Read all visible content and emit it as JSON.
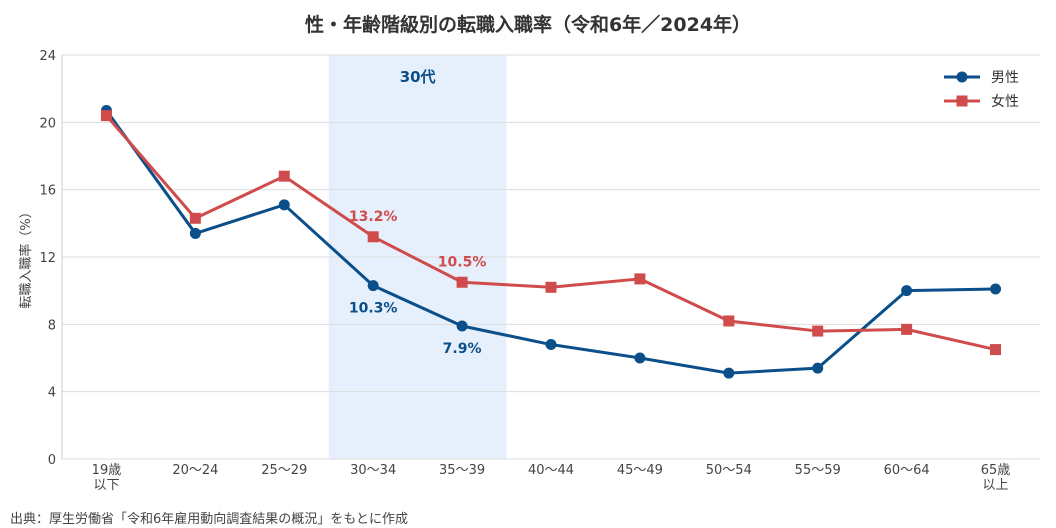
{
  "chart_data": {
    "type": "line",
    "title": "性・年齢階級別の転職入職率（令和6年／2024年）",
    "ylabel": "転職入職率（%）",
    "xlabel": "",
    "ylim": [
      0,
      24
    ],
    "yticks": [
      "0",
      "4",
      "8",
      "12",
      "16",
      "20",
      "24"
    ],
    "grid": true,
    "legend_position": "top-right",
    "categories": [
      [
        "19歳",
        "以下"
      ],
      [
        "20〜24"
      ],
      [
        "25〜29"
      ],
      [
        "30〜34"
      ],
      [
        "35〜39"
      ],
      [
        "40〜44"
      ],
      [
        "45〜49"
      ],
      [
        "50〜54"
      ],
      [
        "55〜59"
      ],
      [
        "60〜64"
      ],
      [
        "65歳",
        "以上"
      ]
    ],
    "series": [
      {
        "name": "男性",
        "color": "#0b4f8a",
        "marker": "circle",
        "values": [
          20.7,
          13.4,
          15.1,
          10.3,
          7.9,
          6.8,
          6.0,
          5.1,
          5.4,
          10.0,
          10.1
        ]
      },
      {
        "name": "女性",
        "color": "#d04b4b",
        "marker": "square",
        "values": [
          20.4,
          14.3,
          16.8,
          13.2,
          10.5,
          10.2,
          10.7,
          8.2,
          7.6,
          7.7,
          6.5
        ]
      }
    ],
    "highlight": {
      "label": "30代",
      "from_index": 3,
      "to_index": 4,
      "color": "#e6f0fd",
      "label_color": "#0b4f8a"
    },
    "annotations": [
      {
        "series": 0,
        "index": 3,
        "text": "10.3%"
      },
      {
        "series": 0,
        "index": 4,
        "text": "7.9%"
      },
      {
        "series": 1,
        "index": 3,
        "text": "13.2%"
      },
      {
        "series": 1,
        "index": 4,
        "text": "10.5%"
      }
    ]
  },
  "source": "出典：厚生労働省「令和6年雇用動向調査結果の概況」をもとに作成"
}
